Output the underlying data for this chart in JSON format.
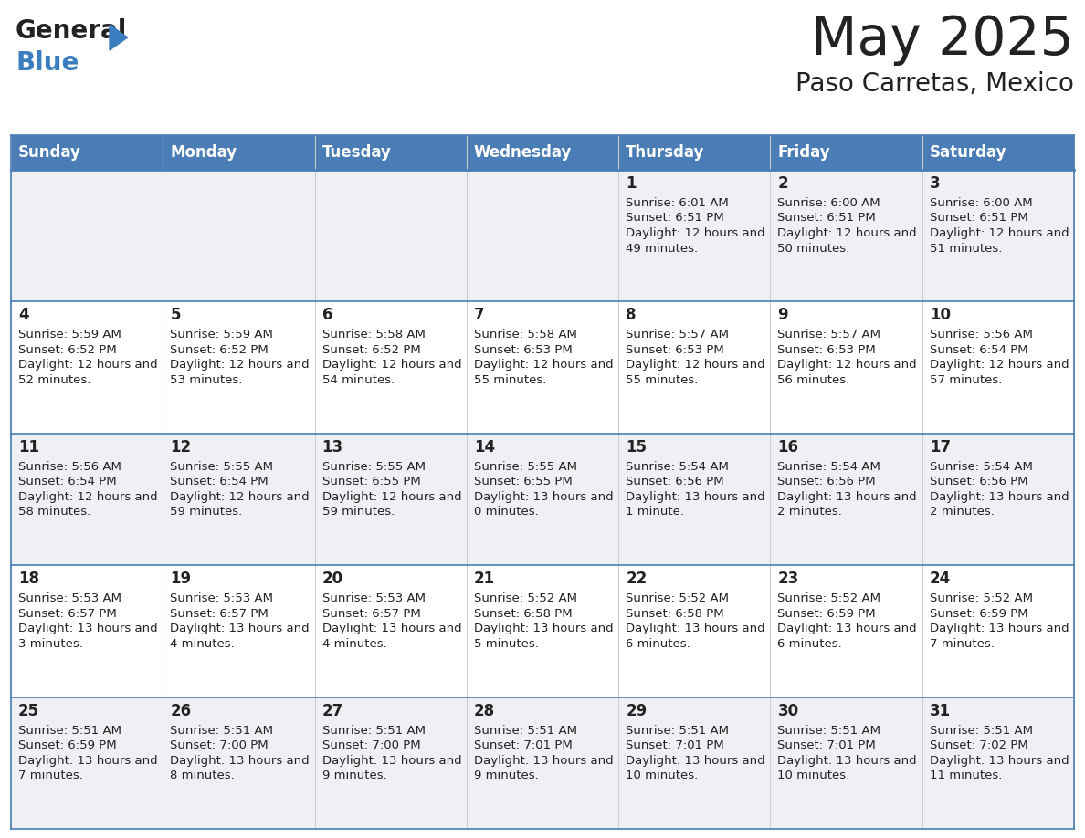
{
  "title": "May 2025",
  "subtitle": "Paso Carretas, Mexico",
  "header_bg": "#4a7db5",
  "header_text": "#ffffff",
  "row_bg_even": "#eef0f3",
  "row_bg_odd": "#ffffff",
  "text_color": "#222222",
  "border_color": "#4a7db5",
  "days_of_week": [
    "Sunday",
    "Monday",
    "Tuesday",
    "Wednesday",
    "Thursday",
    "Friday",
    "Saturday"
  ],
  "weeks": [
    [
      {
        "day": "",
        "sunrise": "",
        "sunset": "",
        "daylight": ""
      },
      {
        "day": "",
        "sunrise": "",
        "sunset": "",
        "daylight": ""
      },
      {
        "day": "",
        "sunrise": "",
        "sunset": "",
        "daylight": ""
      },
      {
        "day": "",
        "sunrise": "",
        "sunset": "",
        "daylight": ""
      },
      {
        "day": "1",
        "sunrise": "6:01 AM",
        "sunset": "6:51 PM",
        "daylight": "12 hours and 49 minutes."
      },
      {
        "day": "2",
        "sunrise": "6:00 AM",
        "sunset": "6:51 PM",
        "daylight": "12 hours and 50 minutes."
      },
      {
        "day": "3",
        "sunrise": "6:00 AM",
        "sunset": "6:51 PM",
        "daylight": "12 hours and 51 minutes."
      }
    ],
    [
      {
        "day": "4",
        "sunrise": "5:59 AM",
        "sunset": "6:52 PM",
        "daylight": "12 hours and 52 minutes."
      },
      {
        "day": "5",
        "sunrise": "5:59 AM",
        "sunset": "6:52 PM",
        "daylight": "12 hours and 53 minutes."
      },
      {
        "day": "6",
        "sunrise": "5:58 AM",
        "sunset": "6:52 PM",
        "daylight": "12 hours and 54 minutes."
      },
      {
        "day": "7",
        "sunrise": "5:58 AM",
        "sunset": "6:53 PM",
        "daylight": "12 hours and 55 minutes."
      },
      {
        "day": "8",
        "sunrise": "5:57 AM",
        "sunset": "6:53 PM",
        "daylight": "12 hours and 55 minutes."
      },
      {
        "day": "9",
        "sunrise": "5:57 AM",
        "sunset": "6:53 PM",
        "daylight": "12 hours and 56 minutes."
      },
      {
        "day": "10",
        "sunrise": "5:56 AM",
        "sunset": "6:54 PM",
        "daylight": "12 hours and 57 minutes."
      }
    ],
    [
      {
        "day": "11",
        "sunrise": "5:56 AM",
        "sunset": "6:54 PM",
        "daylight": "12 hours and 58 minutes."
      },
      {
        "day": "12",
        "sunrise": "5:55 AM",
        "sunset": "6:54 PM",
        "daylight": "12 hours and 59 minutes."
      },
      {
        "day": "13",
        "sunrise": "5:55 AM",
        "sunset": "6:55 PM",
        "daylight": "12 hours and 59 minutes."
      },
      {
        "day": "14",
        "sunrise": "5:55 AM",
        "sunset": "6:55 PM",
        "daylight": "13 hours and 0 minutes."
      },
      {
        "day": "15",
        "sunrise": "5:54 AM",
        "sunset": "6:56 PM",
        "daylight": "13 hours and 1 minute."
      },
      {
        "day": "16",
        "sunrise": "5:54 AM",
        "sunset": "6:56 PM",
        "daylight": "13 hours and 2 minutes."
      },
      {
        "day": "17",
        "sunrise": "5:54 AM",
        "sunset": "6:56 PM",
        "daylight": "13 hours and 2 minutes."
      }
    ],
    [
      {
        "day": "18",
        "sunrise": "5:53 AM",
        "sunset": "6:57 PM",
        "daylight": "13 hours and 3 minutes."
      },
      {
        "day": "19",
        "sunrise": "5:53 AM",
        "sunset": "6:57 PM",
        "daylight": "13 hours and 4 minutes."
      },
      {
        "day": "20",
        "sunrise": "5:53 AM",
        "sunset": "6:57 PM",
        "daylight": "13 hours and 4 minutes."
      },
      {
        "day": "21",
        "sunrise": "5:52 AM",
        "sunset": "6:58 PM",
        "daylight": "13 hours and 5 minutes."
      },
      {
        "day": "22",
        "sunrise": "5:52 AM",
        "sunset": "6:58 PM",
        "daylight": "13 hours and 6 minutes."
      },
      {
        "day": "23",
        "sunrise": "5:52 AM",
        "sunset": "6:59 PM",
        "daylight": "13 hours and 6 minutes."
      },
      {
        "day": "24",
        "sunrise": "5:52 AM",
        "sunset": "6:59 PM",
        "daylight": "13 hours and 7 minutes."
      }
    ],
    [
      {
        "day": "25",
        "sunrise": "5:51 AM",
        "sunset": "6:59 PM",
        "daylight": "13 hours and 7 minutes."
      },
      {
        "day": "26",
        "sunrise": "5:51 AM",
        "sunset": "7:00 PM",
        "daylight": "13 hours and 8 minutes."
      },
      {
        "day": "27",
        "sunrise": "5:51 AM",
        "sunset": "7:00 PM",
        "daylight": "13 hours and 9 minutes."
      },
      {
        "day": "28",
        "sunrise": "5:51 AM",
        "sunset": "7:01 PM",
        "daylight": "13 hours and 9 minutes."
      },
      {
        "day": "29",
        "sunrise": "5:51 AM",
        "sunset": "7:01 PM",
        "daylight": "13 hours and 10 minutes."
      },
      {
        "day": "30",
        "sunrise": "5:51 AM",
        "sunset": "7:01 PM",
        "daylight": "13 hours and 10 minutes."
      },
      {
        "day": "31",
        "sunrise": "5:51 AM",
        "sunset": "7:02 PM",
        "daylight": "13 hours and 11 minutes."
      }
    ]
  ],
  "logo_general_color": "#222222",
  "logo_blue_color": "#3a7ebf",
  "logo_triangle_color": "#3a7ebf"
}
